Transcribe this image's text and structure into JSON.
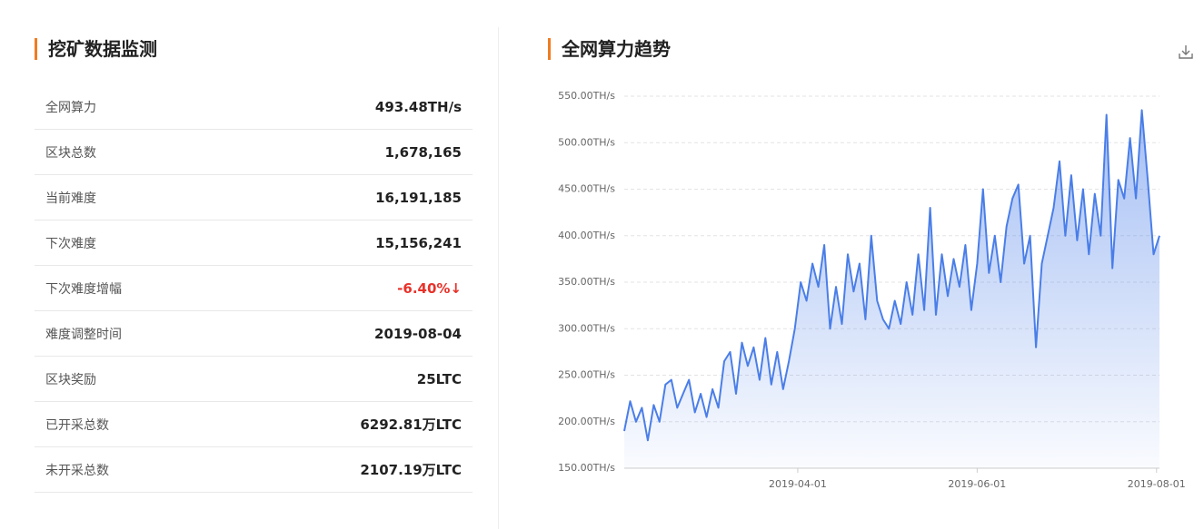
{
  "panel": {
    "title": "挖矿数据监测",
    "rows": [
      [
        "全网算力",
        "493.48TH/s"
      ],
      [
        "区块总数",
        "1,678,165"
      ],
      [
        "当前难度",
        "16,191,185"
      ],
      [
        "下次难度",
        "15,156,241"
      ],
      [
        "下次难度增幅",
        "-6.40%↓"
      ],
      [
        "难度调整时间",
        "2019-08-04"
      ],
      [
        "区块奖励",
        "25LTC"
      ],
      [
        "已开采总数",
        "6292.81万LTC"
      ],
      [
        "未开采总数",
        "2107.19万LTC"
      ]
    ]
  },
  "chart_data": {
    "type": "area",
    "title": "全网算力趋势",
    "x": [
      "2019-02-01",
      "2019-02-03",
      "2019-02-05",
      "2019-02-07",
      "2019-02-09",
      "2019-02-11",
      "2019-02-13",
      "2019-02-15",
      "2019-02-17",
      "2019-02-19",
      "2019-02-21",
      "2019-02-23",
      "2019-02-25",
      "2019-02-27",
      "2019-03-01",
      "2019-03-03",
      "2019-03-05",
      "2019-03-07",
      "2019-03-09",
      "2019-03-11",
      "2019-03-13",
      "2019-03-15",
      "2019-03-17",
      "2019-03-19",
      "2019-03-21",
      "2019-03-23",
      "2019-03-25",
      "2019-03-27",
      "2019-03-29",
      "2019-03-31",
      "2019-04-02",
      "2019-04-04",
      "2019-04-06",
      "2019-04-08",
      "2019-04-10",
      "2019-04-12",
      "2019-04-14",
      "2019-04-16",
      "2019-04-18",
      "2019-04-20",
      "2019-04-22",
      "2019-04-24",
      "2019-04-26",
      "2019-04-28",
      "2019-04-30",
      "2019-05-02",
      "2019-05-04",
      "2019-05-06",
      "2019-05-08",
      "2019-05-10",
      "2019-05-12",
      "2019-05-14",
      "2019-05-16",
      "2019-05-18",
      "2019-05-20",
      "2019-05-22",
      "2019-05-24",
      "2019-05-26",
      "2019-05-28",
      "2019-05-30",
      "2019-06-01",
      "2019-06-03",
      "2019-06-05",
      "2019-06-07",
      "2019-06-09",
      "2019-06-11",
      "2019-06-13",
      "2019-06-15",
      "2019-06-17",
      "2019-06-19",
      "2019-06-21",
      "2019-06-23",
      "2019-06-25",
      "2019-06-27",
      "2019-06-29",
      "2019-07-01",
      "2019-07-03",
      "2019-07-05",
      "2019-07-07",
      "2019-07-09",
      "2019-07-11",
      "2019-07-13",
      "2019-07-15",
      "2019-07-17",
      "2019-07-19",
      "2019-07-21",
      "2019-07-23",
      "2019-07-25",
      "2019-07-27",
      "2019-07-29",
      "2019-07-31",
      "2019-08-02"
    ],
    "series": [
      {
        "color": "#4a7ee8",
        "values": [
          190,
          222,
          200,
          215,
          180,
          218,
          200,
          240,
          245,
          215,
          230,
          245,
          210,
          230,
          205,
          235,
          215,
          265,
          275,
          230,
          285,
          260,
          280,
          245,
          290,
          240,
          275,
          235,
          265,
          300,
          350,
          330,
          370,
          345,
          390,
          300,
          345,
          305,
          380,
          340,
          370,
          310,
          400,
          330,
          310,
          300,
          330,
          305,
          350,
          315,
          380,
          320,
          430,
          315,
          380,
          335,
          375,
          345,
          390,
          320,
          370,
          450,
          360,
          400,
          350,
          410,
          440,
          455,
          370,
          400,
          280,
          370,
          400,
          430,
          480,
          400,
          465,
          395,
          450,
          380,
          445,
          400,
          530,
          365,
          460,
          440,
          505,
          440,
          535,
          460,
          380,
          400
        ]
      }
    ],
    "xlim": [
      "2019-02-01",
      "2019-08-02"
    ],
    "xticks": [
      "2019-04-01",
      "2019-06-01",
      "2019-08-01"
    ],
    "ylim": [
      150,
      550
    ],
    "yticks": [
      {
        "value": 150,
        "label": "150.00TH/s"
      },
      {
        "value": 200,
        "label": "200.00TH/s"
      },
      {
        "value": 250,
        "label": "250.00TH/s"
      },
      {
        "value": 300,
        "label": "300.00TH/s"
      },
      {
        "value": 350,
        "label": "350.00TH/s"
      },
      {
        "value": 400,
        "label": "400.00TH/s"
      },
      {
        "value": 450,
        "label": "450.00TH/s"
      },
      {
        "value": 500,
        "label": "500.00TH/s"
      },
      {
        "value": 550,
        "label": "550.00TH/s"
      }
    ],
    "grid": true
  }
}
